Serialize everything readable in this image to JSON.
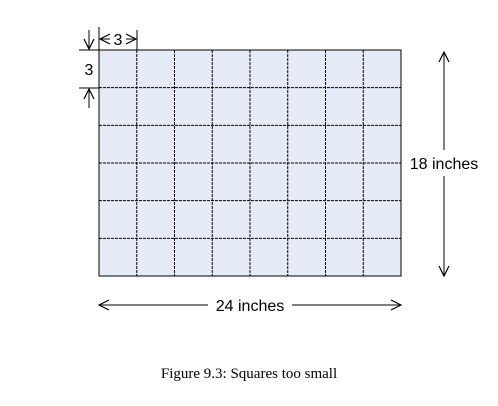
{
  "figure": {
    "caption": "Figure 9.3: Squares too small",
    "grid": {
      "columns": 8,
      "rows": 6,
      "fill_color": "#e6ecf7",
      "line_color": "#000000"
    },
    "labels": {
      "square_width": "3",
      "square_height": "3",
      "total_width": "24 inches",
      "total_height": "18 inches"
    }
  }
}
